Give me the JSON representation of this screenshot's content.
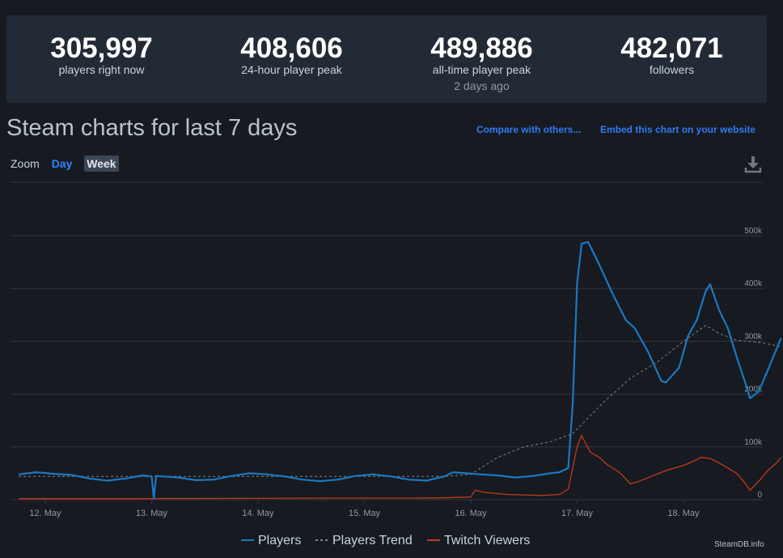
{
  "stats": [
    {
      "value": "305,997",
      "label": "players right now",
      "sub": ""
    },
    {
      "value": "408,606",
      "label": "24-hour player peak",
      "sub": ""
    },
    {
      "value": "489,886",
      "label": "all-time player peak",
      "sub": "2 days ago"
    },
    {
      "value": "482,071",
      "label": "followers",
      "sub": ""
    }
  ],
  "heading": "Steam charts for last 7 days",
  "links": {
    "compare": "Compare with others...",
    "embed": "Embed this chart on your website"
  },
  "zoom": {
    "label": "Zoom",
    "day": "Day",
    "week": "Week"
  },
  "credit": "SteamDB.info",
  "colors": {
    "players": "#1a78c2",
    "trend": "#838383",
    "twitch": "#c23b1a",
    "grid": "#333842",
    "axis_text": "#8f98a0",
    "accent_link": "#2f7bf0"
  },
  "icons": {
    "download": "download-icon"
  },
  "chart_data": {
    "type": "line",
    "x_unit": "date",
    "x_range": [
      "11 May 18:00",
      "18 May 16:00"
    ],
    "x_ticks": [
      "12. May",
      "13. May",
      "14. May",
      "15. May",
      "16. May",
      "17. May",
      "18. May"
    ],
    "y_ticks": [
      "0",
      "100k",
      "200k",
      "300k",
      "400k",
      "500k"
    ],
    "ylim": [
      0,
      520000
    ],
    "grid": true,
    "legend_position": "bottom-center",
    "series": [
      {
        "name": "Players",
        "color": "#1a78c2",
        "points": [
          [
            "11 May 18:00",
            48000
          ],
          [
            "11 May 22:00",
            52000
          ],
          [
            "12 May 02:00",
            49000
          ],
          [
            "12 May 06:00",
            47000
          ],
          [
            "12 May 10:00",
            40000
          ],
          [
            "12 May 14:00",
            36000
          ],
          [
            "12 May 18:00",
            40000
          ],
          [
            "12 May 22:00",
            46000
          ],
          [
            "13 May 00:00",
            44000
          ],
          [
            "13 May 00:30",
            2000
          ],
          [
            "13 May 01:00",
            45000
          ],
          [
            "13 May 06:00",
            42000
          ],
          [
            "13 May 10:00",
            37000
          ],
          [
            "13 May 14:00",
            38000
          ],
          [
            "13 May 18:00",
            45000
          ],
          [
            "13 May 22:00",
            50000
          ],
          [
            "14 May 02:00",
            48000
          ],
          [
            "14 May 06:00",
            44000
          ],
          [
            "14 May 10:00",
            38000
          ],
          [
            "14 May 14:00",
            35000
          ],
          [
            "14 May 18:00",
            38000
          ],
          [
            "14 May 22:00",
            45000
          ],
          [
            "15 May 02:00",
            48000
          ],
          [
            "15 May 06:00",
            44000
          ],
          [
            "15 May 10:00",
            38000
          ],
          [
            "15 May 14:00",
            36000
          ],
          [
            "15 May 18:00",
            44000
          ],
          [
            "15 May 20:00",
            52000
          ],
          [
            "16 May 02:00",
            48000
          ],
          [
            "16 May 06:00",
            46000
          ],
          [
            "16 May 10:00",
            42000
          ],
          [
            "16 May 14:00",
            45000
          ],
          [
            "16 May 18:00",
            50000
          ],
          [
            "16 May 20:00",
            52000
          ],
          [
            "16 May 22:00",
            60000
          ],
          [
            "16 May 23:00",
            180000
          ],
          [
            "17 May 00:00",
            410000
          ],
          [
            "17 May 01:00",
            485000
          ],
          [
            "17 May 02:30",
            488000
          ],
          [
            "17 May 05:00",
            445000
          ],
          [
            "17 May 08:00",
            390000
          ],
          [
            "17 May 11:00",
            340000
          ],
          [
            "17 May 13:00",
            325000
          ],
          [
            "17 May 16:00",
            280000
          ],
          [
            "17 May 19:00",
            225000
          ],
          [
            "17 May 20:00",
            222000
          ],
          [
            "17 May 23:00",
            250000
          ],
          [
            "18 May 01:00",
            310000
          ],
          [
            "18 May 03:00",
            340000
          ],
          [
            "18 May 05:00",
            395000
          ],
          [
            "18 May 06:00",
            408000
          ],
          [
            "18 May 08:00",
            360000
          ],
          [
            "18 May 10:00",
            325000
          ],
          [
            "18 May 12:00",
            270000
          ],
          [
            "18 May 14:00",
            220000
          ],
          [
            "18 May 15:00",
            192000
          ],
          [
            "18 May 17:00",
            205000
          ],
          [
            "18 May 19:00",
            245000
          ],
          [
            "18 May 22:00",
            306000
          ]
        ]
      },
      {
        "name": "Players Trend",
        "color": "#838383",
        "dashed": true,
        "points": [
          [
            "11 May 18:00",
            44000
          ],
          [
            "12 May 18:00",
            44000
          ],
          [
            "13 May 18:00",
            44000
          ],
          [
            "14 May 18:00",
            44000
          ],
          [
            "15 May 18:00",
            44000
          ],
          [
            "16 May 00:00",
            48000
          ],
          [
            "16 May 06:00",
            80000
          ],
          [
            "16 May 12:00",
            100000
          ],
          [
            "16 May 18:00",
            110000
          ],
          [
            "16 May 23:00",
            125000
          ],
          [
            "17 May 06:00",
            185000
          ],
          [
            "17 May 12:00",
            230000
          ],
          [
            "17 May 18:00",
            260000
          ],
          [
            "18 May 00:00",
            300000
          ],
          [
            "18 May 05:00",
            330000
          ],
          [
            "18 May 08:00",
            315000
          ],
          [
            "18 May 12:00",
            302000
          ],
          [
            "18 May 17:00",
            298000
          ],
          [
            "18 May 22:00",
            290000
          ]
        ]
      },
      {
        "name": "Twitch Viewers",
        "color": "#c23b1a",
        "points": [
          [
            "11 May 18:00",
            2000
          ],
          [
            "12 May 18:00",
            2000
          ],
          [
            "13 May 18:00",
            2500
          ],
          [
            "14 May 18:00",
            3000
          ],
          [
            "15 May 12:00",
            3000
          ],
          [
            "15 May 18:00",
            3500
          ],
          [
            "16 May 00:00",
            5000
          ],
          [
            "16 May 01:00",
            18000
          ],
          [
            "16 May 03:00",
            14000
          ],
          [
            "16 May 08:00",
            10000
          ],
          [
            "16 May 16:00",
            8000
          ],
          [
            "16 May 20:00",
            10000
          ],
          [
            "16 May 22:00",
            20000
          ],
          [
            "17 May 00:00",
            100000
          ],
          [
            "17 May 01:00",
            122000
          ],
          [
            "17 May 02:00",
            105000
          ],
          [
            "17 May 03:00",
            90000
          ],
          [
            "17 May 05:00",
            80000
          ],
          [
            "17 May 07:00",
            65000
          ],
          [
            "17 May 09:00",
            55000
          ],
          [
            "17 May 10:00",
            48000
          ],
          [
            "17 May 12:00",
            30000
          ],
          [
            "17 May 14:00",
            35000
          ],
          [
            "17 May 17:00",
            45000
          ],
          [
            "17 May 20:00",
            55000
          ],
          [
            "17 May 22:00",
            60000
          ],
          [
            "18 May 00:00",
            65000
          ],
          [
            "18 May 02:00",
            72000
          ],
          [
            "18 May 04:00",
            80000
          ],
          [
            "18 May 06:00",
            78000
          ],
          [
            "18 May 08:00",
            70000
          ],
          [
            "18 May 10:00",
            60000
          ],
          [
            "18 May 12:00",
            50000
          ],
          [
            "18 May 14:00",
            30000
          ],
          [
            "18 May 15:00",
            18000
          ],
          [
            "18 May 17:00",
            35000
          ],
          [
            "18 May 19:00",
            55000
          ],
          [
            "18 May 21:00",
            70000
          ],
          [
            "18 May 22:00",
            80000
          ]
        ]
      }
    ]
  }
}
